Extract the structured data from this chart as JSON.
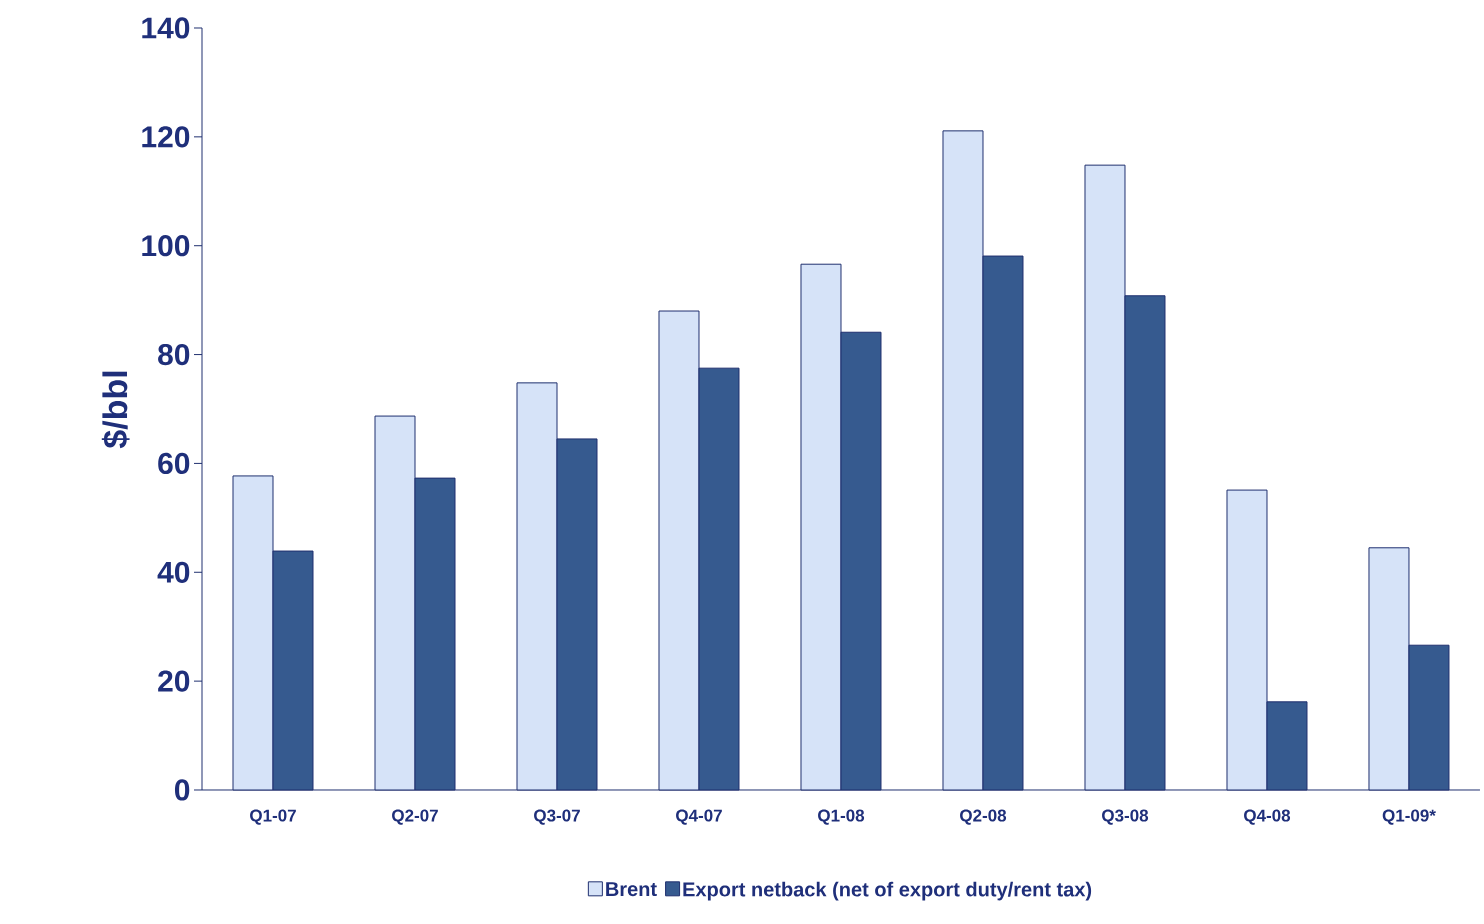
{
  "chart_data": {
    "type": "bar",
    "ylabel": "$/bbl",
    "categories": [
      "Q1-07",
      "Q2-07",
      "Q3-07",
      "Q4-07",
      "Q1-08",
      "Q2-08",
      "Q3-08",
      "Q4-08",
      "Q1-09*"
    ],
    "series": [
      {
        "name": "Brent",
        "color": "#d6e3f8",
        "values": [
          57.7,
          68.7,
          74.8,
          88.0,
          96.6,
          121.1,
          114.8,
          55.1,
          44.5
        ]
      },
      {
        "name": "Export netback (net of export duty/rent tax)",
        "color": "#365a8f",
        "values": [
          43.9,
          57.3,
          64.5,
          77.5,
          84.1,
          98.1,
          90.8,
          16.2,
          26.6
        ]
      }
    ],
    "ylim": [
      0,
      140
    ],
    "yticks": [
      0,
      20,
      40,
      60,
      80,
      100,
      120,
      140
    ],
    "legend": "bottom"
  }
}
